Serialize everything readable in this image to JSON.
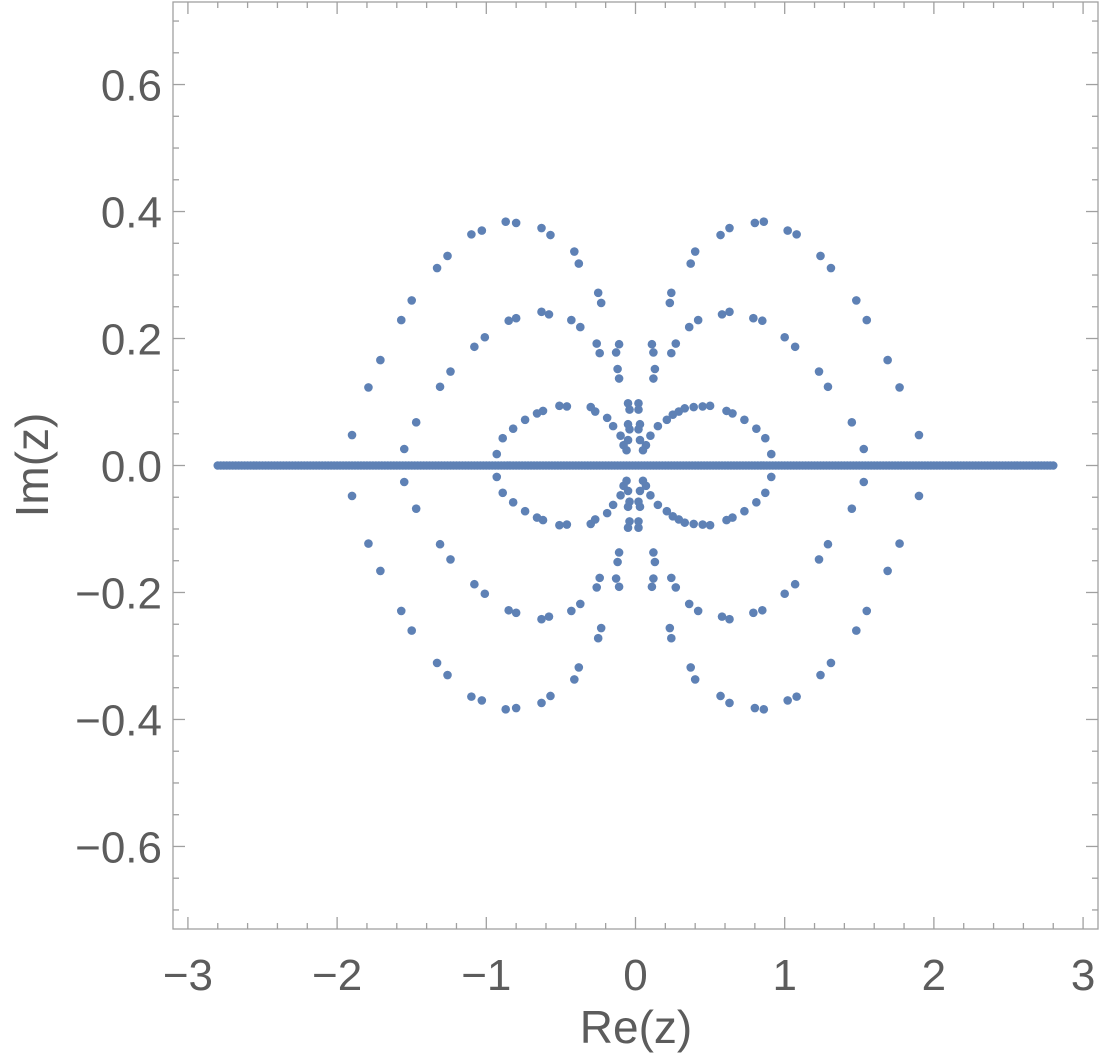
{
  "chart_data": {
    "type": "scatter",
    "title": "",
    "xlabel": "Re(z)",
    "ylabel": "Im(z)",
    "xlim": [
      -3.1,
      3.1
    ],
    "ylim": [
      -0.73,
      0.73
    ],
    "x_ticks": [
      -3,
      -2,
      -1,
      0,
      1,
      2,
      3
    ],
    "x_tick_labels": [
      "−3",
      "−2",
      "−1",
      "0",
      "1",
      "2",
      "3"
    ],
    "y_ticks": [
      -0.6,
      -0.4,
      -0.2,
      0.0,
      0.2,
      0.4,
      0.6
    ],
    "y_tick_labels": [
      "−0.6",
      "−0.4",
      "−0.2",
      "0.0",
      "0.2",
      "0.4",
      "0.6"
    ],
    "grid": false,
    "marker_color": "#5e81b5",
    "series": [
      {
        "points": [
          [
            -1.9,
            0.048
          ],
          [
            -1.79,
            0.123
          ],
          [
            -1.71,
            0.166
          ],
          [
            -1.57,
            0.229
          ],
          [
            -1.5,
            0.26
          ],
          [
            -1.33,
            0.311
          ],
          [
            -1.26,
            0.33
          ],
          [
            -1.1,
            0.364
          ],
          [
            -1.03,
            0.37
          ],
          [
            -0.87,
            0.384
          ],
          [
            -0.8,
            0.382
          ],
          [
            -0.63,
            0.374
          ],
          [
            -0.57,
            0.363
          ],
          [
            -0.41,
            0.337
          ],
          [
            -0.38,
            0.318
          ],
          [
            -0.25,
            0.272
          ],
          [
            -0.23,
            0.256
          ],
          [
            1.9,
            0.048
          ],
          [
            1.77,
            0.123
          ],
          [
            1.69,
            0.166
          ],
          [
            1.55,
            0.229
          ],
          [
            1.48,
            0.26
          ],
          [
            1.31,
            0.311
          ],
          [
            1.24,
            0.33
          ],
          [
            1.08,
            0.364
          ],
          [
            1.02,
            0.37
          ],
          [
            0.86,
            0.384
          ],
          [
            0.8,
            0.382
          ],
          [
            0.63,
            0.374
          ],
          [
            0.57,
            0.363
          ],
          [
            0.4,
            0.337
          ],
          [
            0.37,
            0.318
          ],
          [
            0.24,
            0.272
          ],
          [
            0.23,
            0.256
          ],
          [
            -1.55,
            0.026
          ],
          [
            -1.47,
            0.068
          ],
          [
            -1.31,
            0.124
          ],
          [
            -1.24,
            0.148
          ],
          [
            -1.08,
            0.187
          ],
          [
            -1.01,
            0.202
          ],
          [
            -0.85,
            0.228
          ],
          [
            -0.8,
            0.232
          ],
          [
            -0.63,
            0.242
          ],
          [
            -0.58,
            0.238
          ],
          [
            -0.43,
            0.229
          ],
          [
            -0.37,
            0.218
          ],
          [
            -0.26,
            0.192
          ],
          [
            -0.24,
            0.177
          ],
          [
            -0.13,
            0.178
          ],
          [
            -0.11,
            0.191
          ],
          [
            -0.12,
            0.152
          ],
          [
            -0.11,
            0.137
          ],
          [
            1.53,
            0.026
          ],
          [
            1.45,
            0.068
          ],
          [
            1.29,
            0.124
          ],
          [
            1.23,
            0.148
          ],
          [
            1.07,
            0.187
          ],
          [
            1.0,
            0.202
          ],
          [
            0.85,
            0.228
          ],
          [
            0.79,
            0.232
          ],
          [
            0.63,
            0.242
          ],
          [
            0.58,
            0.238
          ],
          [
            0.42,
            0.229
          ],
          [
            0.36,
            0.218
          ],
          [
            0.27,
            0.192
          ],
          [
            0.24,
            0.177
          ],
          [
            0.12,
            0.178
          ],
          [
            0.11,
            0.191
          ],
          [
            0.13,
            0.152
          ],
          [
            0.12,
            0.137
          ],
          [
            -0.93,
            0.018
          ],
          [
            -0.89,
            0.043
          ],
          [
            -0.82,
            0.058
          ],
          [
            -0.74,
            0.072
          ],
          [
            -0.66,
            0.082
          ],
          [
            -0.62,
            0.086
          ],
          [
            -0.51,
            0.094
          ],
          [
            -0.46,
            0.093
          ],
          [
            -0.3,
            0.092
          ],
          [
            -0.27,
            0.085
          ],
          [
            -0.19,
            0.075
          ],
          [
            -0.15,
            0.062
          ],
          [
            -0.1,
            0.047
          ],
          [
            -0.08,
            0.032
          ],
          [
            -0.06,
            0.024
          ],
          [
            0.91,
            0.018
          ],
          [
            0.87,
            0.043
          ],
          [
            0.81,
            0.058
          ],
          [
            0.73,
            0.072
          ],
          [
            0.65,
            0.082
          ],
          [
            0.61,
            0.086
          ],
          [
            0.5,
            0.094
          ],
          [
            0.45,
            0.093
          ],
          [
            0.39,
            0.092
          ],
          [
            0.33,
            0.09
          ],
          [
            0.29,
            0.085
          ],
          [
            0.25,
            0.08
          ],
          [
            0.21,
            0.072
          ],
          [
            0.15,
            0.062
          ],
          [
            0.1,
            0.047
          ],
          [
            0.07,
            0.032
          ],
          [
            0.05,
            0.024
          ],
          [
            -0.05,
            0.098
          ],
          [
            -0.04,
            0.088
          ],
          [
            -0.05,
            0.065
          ],
          [
            -0.04,
            0.057
          ],
          [
            -0.05,
            0.04
          ],
          [
            0.02,
            0.098
          ],
          [
            0.02,
            0.088
          ],
          [
            0.03,
            0.065
          ],
          [
            0.02,
            0.057
          ],
          [
            0.03,
            0.04
          ],
          [
            -1.9,
            -0.048
          ],
          [
            -1.79,
            -0.123
          ],
          [
            -1.71,
            -0.166
          ],
          [
            -1.57,
            -0.229
          ],
          [
            -1.5,
            -0.26
          ],
          [
            -1.33,
            -0.311
          ],
          [
            -1.26,
            -0.33
          ],
          [
            -1.1,
            -0.364
          ],
          [
            -1.03,
            -0.37
          ],
          [
            -0.87,
            -0.384
          ],
          [
            -0.8,
            -0.382
          ],
          [
            -0.63,
            -0.374
          ],
          [
            -0.57,
            -0.363
          ],
          [
            -0.41,
            -0.337
          ],
          [
            -0.38,
            -0.318
          ],
          [
            -0.25,
            -0.272
          ],
          [
            -0.23,
            -0.256
          ],
          [
            1.9,
            -0.048
          ],
          [
            1.77,
            -0.123
          ],
          [
            1.69,
            -0.166
          ],
          [
            1.55,
            -0.229
          ],
          [
            1.48,
            -0.26
          ],
          [
            1.31,
            -0.311
          ],
          [
            1.24,
            -0.33
          ],
          [
            1.08,
            -0.364
          ],
          [
            1.02,
            -0.37
          ],
          [
            0.86,
            -0.384
          ],
          [
            0.8,
            -0.382
          ],
          [
            0.63,
            -0.374
          ],
          [
            0.57,
            -0.363
          ],
          [
            0.4,
            -0.337
          ],
          [
            0.37,
            -0.318
          ],
          [
            0.24,
            -0.272
          ],
          [
            0.23,
            -0.256
          ],
          [
            -1.55,
            -0.026
          ],
          [
            -1.47,
            -0.068
          ],
          [
            -1.31,
            -0.124
          ],
          [
            -1.24,
            -0.148
          ],
          [
            -1.08,
            -0.187
          ],
          [
            -1.01,
            -0.202
          ],
          [
            -0.85,
            -0.228
          ],
          [
            -0.8,
            -0.232
          ],
          [
            -0.63,
            -0.242
          ],
          [
            -0.58,
            -0.238
          ],
          [
            -0.43,
            -0.229
          ],
          [
            -0.37,
            -0.218
          ],
          [
            -0.26,
            -0.192
          ],
          [
            -0.24,
            -0.177
          ],
          [
            -0.13,
            -0.178
          ],
          [
            -0.11,
            -0.191
          ],
          [
            -0.12,
            -0.152
          ],
          [
            -0.11,
            -0.137
          ],
          [
            1.53,
            -0.026
          ],
          [
            1.45,
            -0.068
          ],
          [
            1.29,
            -0.124
          ],
          [
            1.23,
            -0.148
          ],
          [
            1.07,
            -0.187
          ],
          [
            1.0,
            -0.202
          ],
          [
            0.85,
            -0.228
          ],
          [
            0.79,
            -0.232
          ],
          [
            0.63,
            -0.242
          ],
          [
            0.58,
            -0.238
          ],
          [
            0.42,
            -0.229
          ],
          [
            0.36,
            -0.218
          ],
          [
            0.27,
            -0.192
          ],
          [
            0.24,
            -0.177
          ],
          [
            0.12,
            -0.178
          ],
          [
            0.11,
            -0.191
          ],
          [
            0.13,
            -0.152
          ],
          [
            0.12,
            -0.137
          ],
          [
            -0.93,
            -0.018
          ],
          [
            -0.89,
            -0.043
          ],
          [
            -0.82,
            -0.058
          ],
          [
            -0.74,
            -0.072
          ],
          [
            -0.66,
            -0.082
          ],
          [
            -0.62,
            -0.086
          ],
          [
            -0.51,
            -0.094
          ],
          [
            -0.46,
            -0.093
          ],
          [
            -0.3,
            -0.092
          ],
          [
            -0.27,
            -0.085
          ],
          [
            -0.19,
            -0.075
          ],
          [
            -0.15,
            -0.062
          ],
          [
            -0.1,
            -0.047
          ],
          [
            -0.08,
            -0.032
          ],
          [
            -0.06,
            -0.024
          ],
          [
            0.91,
            -0.018
          ],
          [
            0.87,
            -0.043
          ],
          [
            0.81,
            -0.058
          ],
          [
            0.73,
            -0.072
          ],
          [
            0.65,
            -0.082
          ],
          [
            0.61,
            -0.086
          ],
          [
            0.5,
            -0.094
          ],
          [
            0.45,
            -0.093
          ],
          [
            0.39,
            -0.092
          ],
          [
            0.33,
            -0.09
          ],
          [
            0.29,
            -0.085
          ],
          [
            0.25,
            -0.08
          ],
          [
            0.21,
            -0.072
          ],
          [
            0.15,
            -0.062
          ],
          [
            0.1,
            -0.047
          ],
          [
            0.07,
            -0.032
          ],
          [
            0.05,
            -0.024
          ],
          [
            -0.05,
            -0.098
          ],
          [
            -0.04,
            -0.088
          ],
          [
            -0.05,
            -0.065
          ],
          [
            -0.04,
            -0.057
          ],
          [
            -0.05,
            -0.04
          ],
          [
            0.02,
            -0.098
          ],
          [
            0.02,
            -0.088
          ],
          [
            0.03,
            -0.065
          ],
          [
            0.02,
            -0.057
          ],
          [
            0.03,
            -0.04
          ]
        ],
        "real_axis_points": {
          "from": -2.8,
          "to": 2.8,
          "step": 0.02,
          "y": 0.0
        }
      }
    ]
  }
}
